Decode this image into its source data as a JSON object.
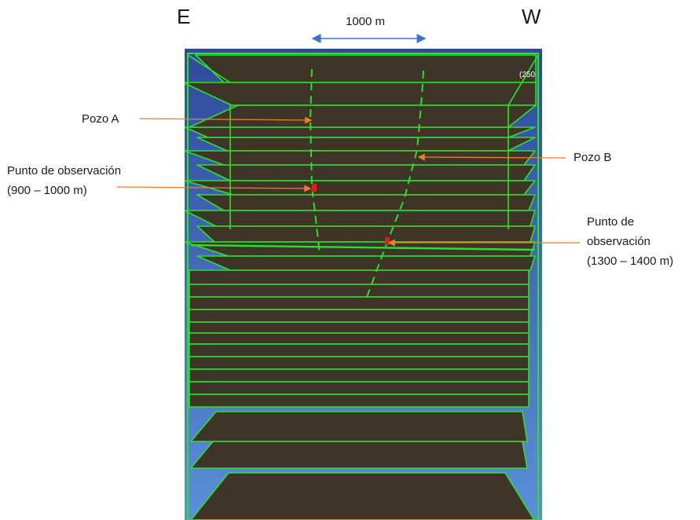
{
  "directions": {
    "left": "E",
    "right": "W"
  },
  "scale_label": "1000 m",
  "corner_text": "(250",
  "wells": {
    "a": {
      "label": "Pozo A"
    },
    "b": {
      "label": "Pozo B"
    }
  },
  "observation_points": {
    "a": {
      "line1": "Punto de observación",
      "line2": "(900 – 1000 m)"
    },
    "b": {
      "line1": "Punto de",
      "line2": "observación",
      "line3": "(1300 – 1400 m)"
    }
  },
  "colors": {
    "background_top": "#2e4b9a",
    "background_bottom": "#5b8fd9",
    "layer_fill": "#3e3527",
    "grid_line": "#2ee02e",
    "leader_line": "#ed7d31",
    "scale_arrow": "#4472c4",
    "marker": "#e51b1b"
  }
}
